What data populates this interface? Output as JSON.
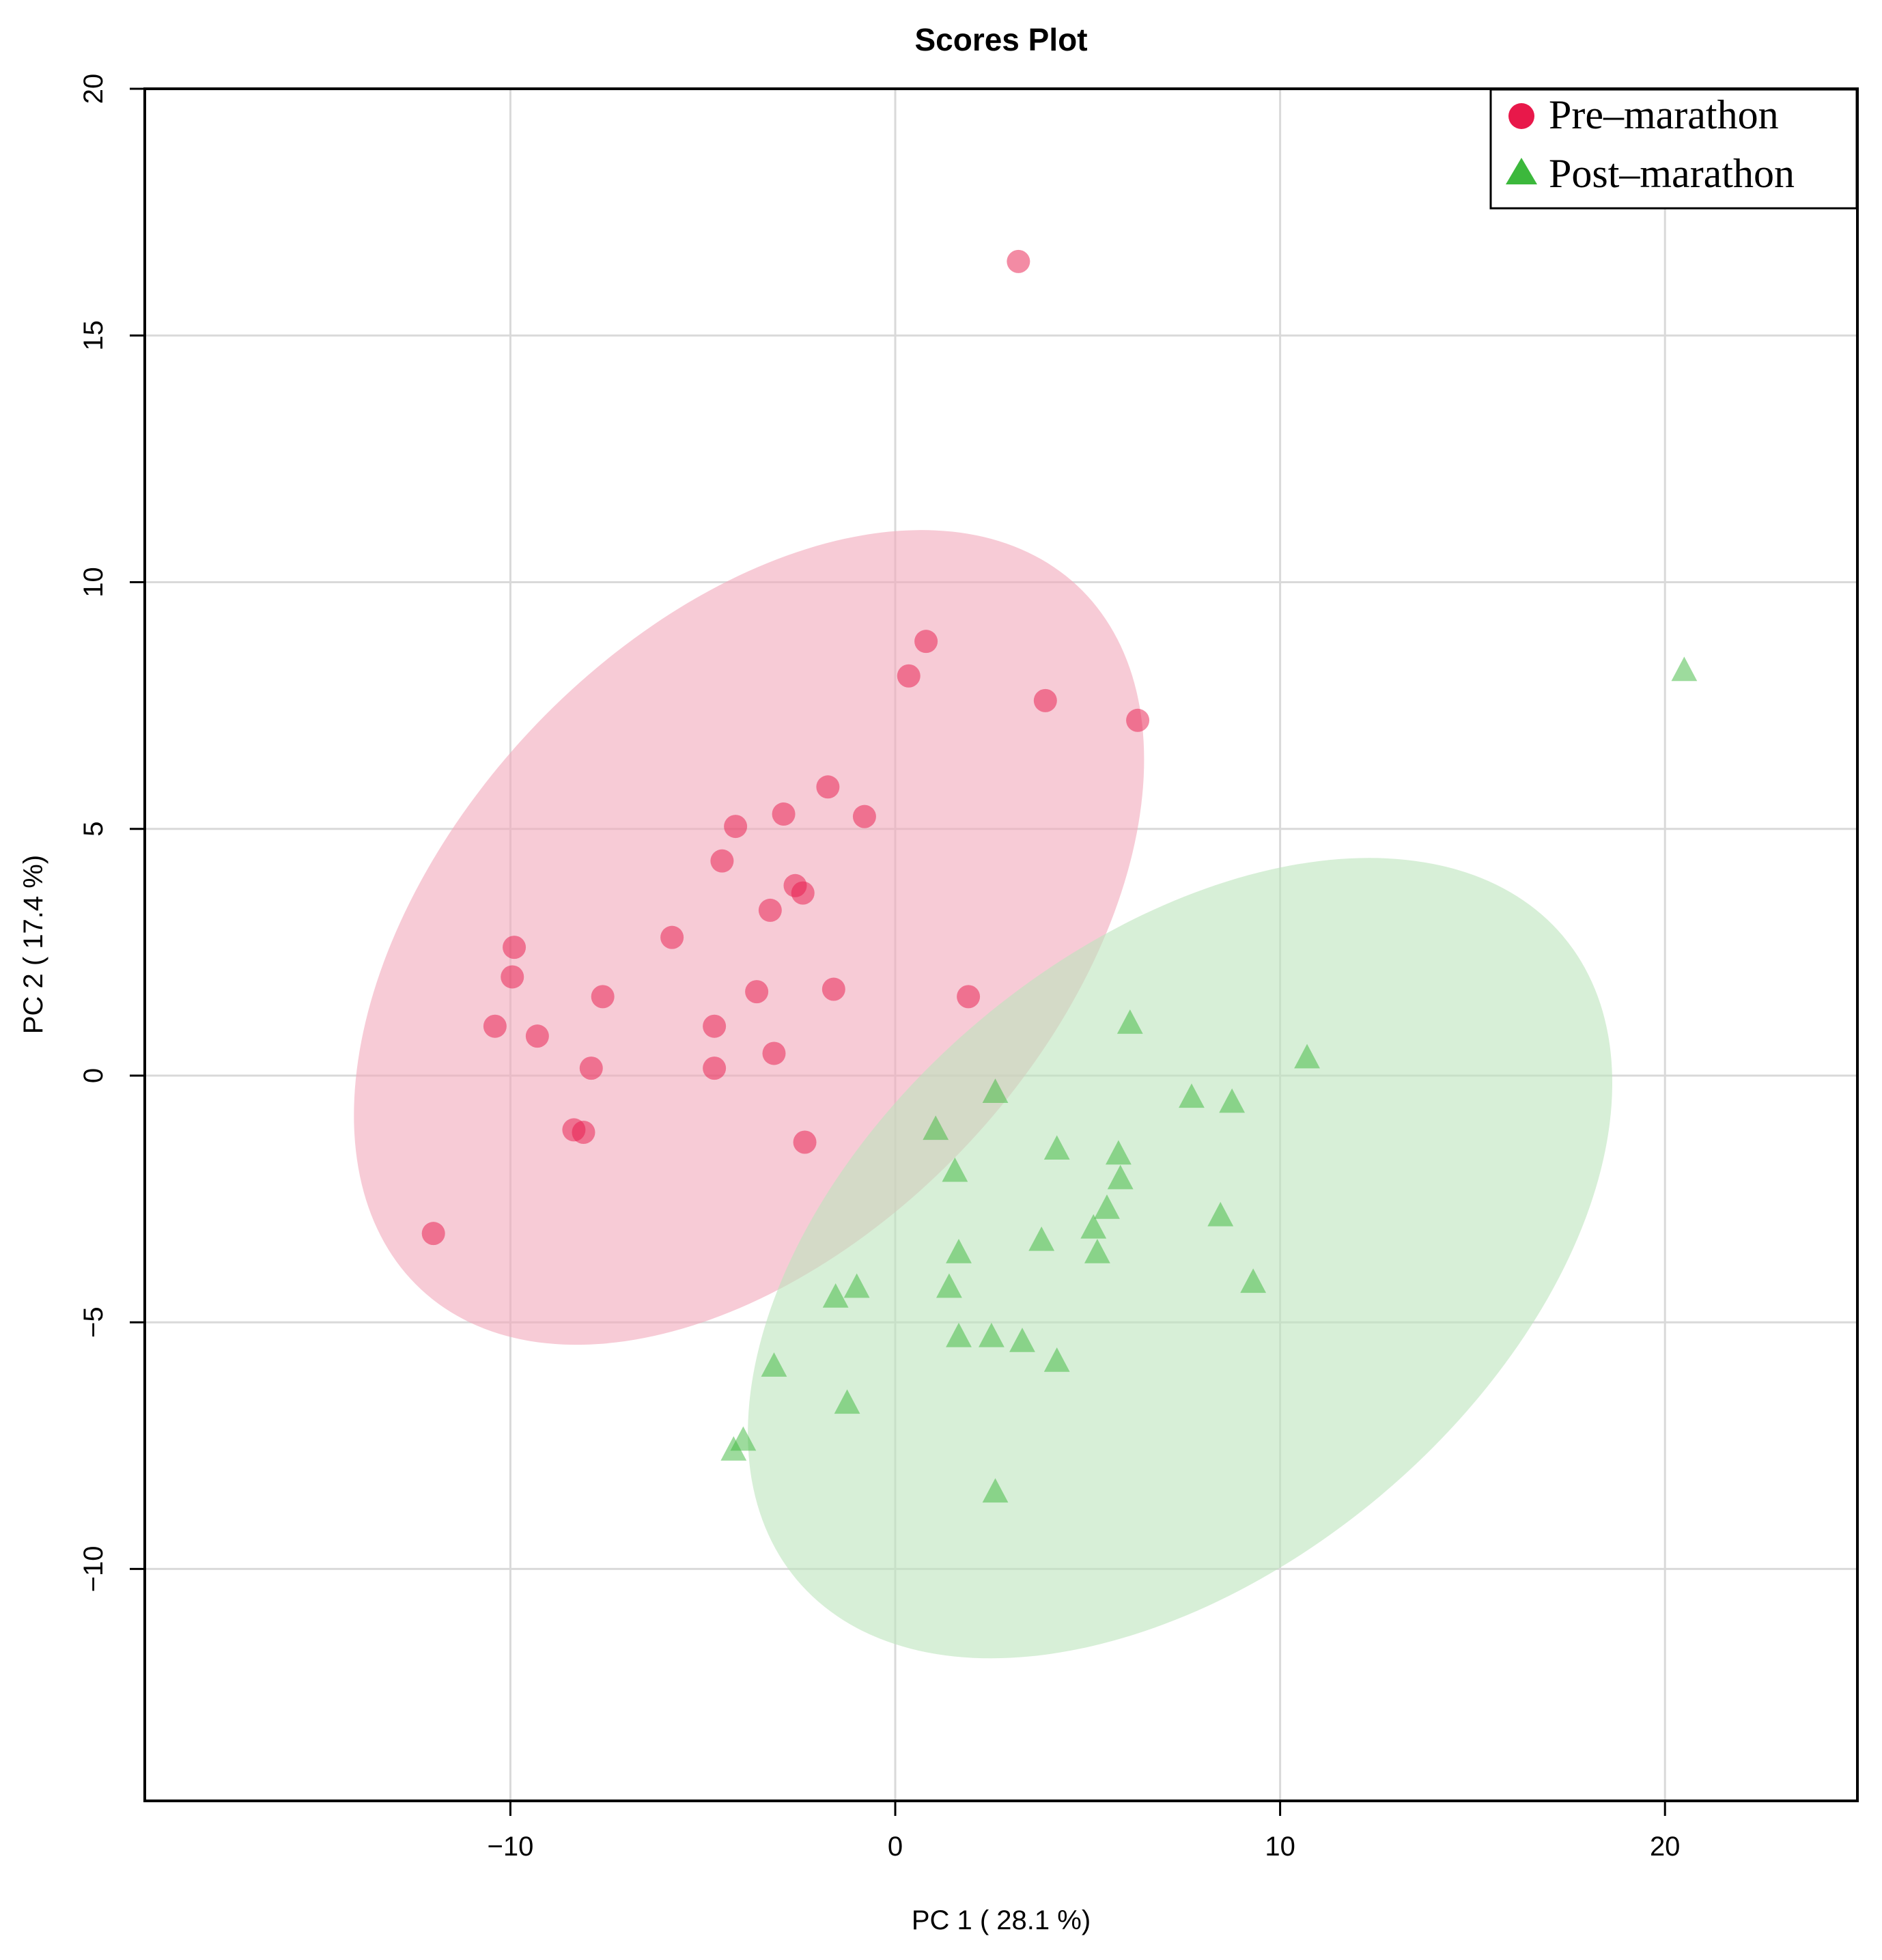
{
  "chart_data": {
    "type": "scatter",
    "title": "Scores Plot",
    "xlabel": "PC 1 ( 28.1 %)",
    "ylabel": "PC 2 ( 17.4 %)",
    "xlim": [
      -19.5,
      25
    ],
    "ylim": [
      -14.7,
      20
    ],
    "xticks": [
      -10,
      0,
      10,
      20
    ],
    "yticks": [
      -10,
      -5,
      0,
      5,
      10,
      15,
      20
    ],
    "xtick_labels": [
      "−10",
      "0",
      "10",
      "20"
    ],
    "ytick_labels": [
      "−10",
      "−5",
      "0",
      "5",
      "10",
      "15",
      "20"
    ],
    "grid": true,
    "legend_position": "top-right",
    "series": [
      {
        "name": "Pre–marathon",
        "marker": "circle",
        "color": "#e8184a",
        "ellipse_color": "#f1a8bb",
        "ellipse": {
          "cx": -3.8,
          "cy": 2.8,
          "rx_data": 12.5,
          "ry_data": 6.1,
          "angle_deg": 47
        },
        "points": [
          [
            3.2,
            16.5
          ],
          [
            0.8,
            8.8
          ],
          [
            0.35,
            8.1
          ],
          [
            3.9,
            7.6
          ],
          [
            6.3,
            7.2
          ],
          [
            -1.75,
            5.85
          ],
          [
            -0.8,
            5.25
          ],
          [
            -2.9,
            5.3
          ],
          [
            -4.15,
            5.05
          ],
          [
            -4.5,
            4.35
          ],
          [
            -2.6,
            3.85
          ],
          [
            -2.4,
            3.7
          ],
          [
            -3.25,
            3.35
          ],
          [
            -5.8,
            2.8
          ],
          [
            -9.9,
            2.6
          ],
          [
            -9.95,
            2.0
          ],
          [
            -7.6,
            1.6
          ],
          [
            -3.6,
            1.7
          ],
          [
            -1.6,
            1.75
          ],
          [
            1.9,
            1.6
          ],
          [
            -10.4,
            1.0
          ],
          [
            -9.3,
            0.8
          ],
          [
            -4.7,
            1.0
          ],
          [
            -3.15,
            0.45
          ],
          [
            -7.9,
            0.15
          ],
          [
            -4.7,
            0.15
          ],
          [
            -8.35,
            -1.1
          ],
          [
            -8.1,
            -1.15
          ],
          [
            -2.35,
            -1.35
          ],
          [
            -12.0,
            -3.2
          ]
        ]
      },
      {
        "name": "Post–marathon",
        "marker": "triangle",
        "color": "#3cb83c",
        "ellipse_color": "#bde4bd",
        "ellipse": {
          "cx": 7.4,
          "cy": -3.7,
          "rx_data": 13.0,
          "ry_data": 6.3,
          "angle_deg": 40
        },
        "points": [
          [
            20.5,
            8.2
          ],
          [
            6.1,
            1.05
          ],
          [
            10.7,
            0.35
          ],
          [
            2.6,
            -0.35
          ],
          [
            7.7,
            -0.45
          ],
          [
            8.75,
            -0.55
          ],
          [
            1.05,
            -1.1
          ],
          [
            4.2,
            -1.5
          ],
          [
            5.8,
            -1.6
          ],
          [
            1.55,
            -1.95
          ],
          [
            5.85,
            -2.1
          ],
          [
            5.5,
            -2.7
          ],
          [
            8.45,
            -2.85
          ],
          [
            5.15,
            -3.1
          ],
          [
            3.8,
            -3.35
          ],
          [
            1.65,
            -3.6
          ],
          [
            5.25,
            -3.6
          ],
          [
            9.3,
            -4.2
          ],
          [
            1.4,
            -4.3
          ],
          [
            -1.0,
            -4.3
          ],
          [
            -1.55,
            -4.5
          ],
          [
            1.65,
            -5.3
          ],
          [
            2.5,
            -5.3
          ],
          [
            3.3,
            -5.4
          ],
          [
            4.2,
            -5.8
          ],
          [
            -3.15,
            -5.9
          ],
          [
            -1.25,
            -6.65
          ],
          [
            -3.95,
            -7.4
          ],
          [
            -4.2,
            -7.6
          ],
          [
            2.6,
            -8.45
          ]
        ]
      }
    ]
  }
}
